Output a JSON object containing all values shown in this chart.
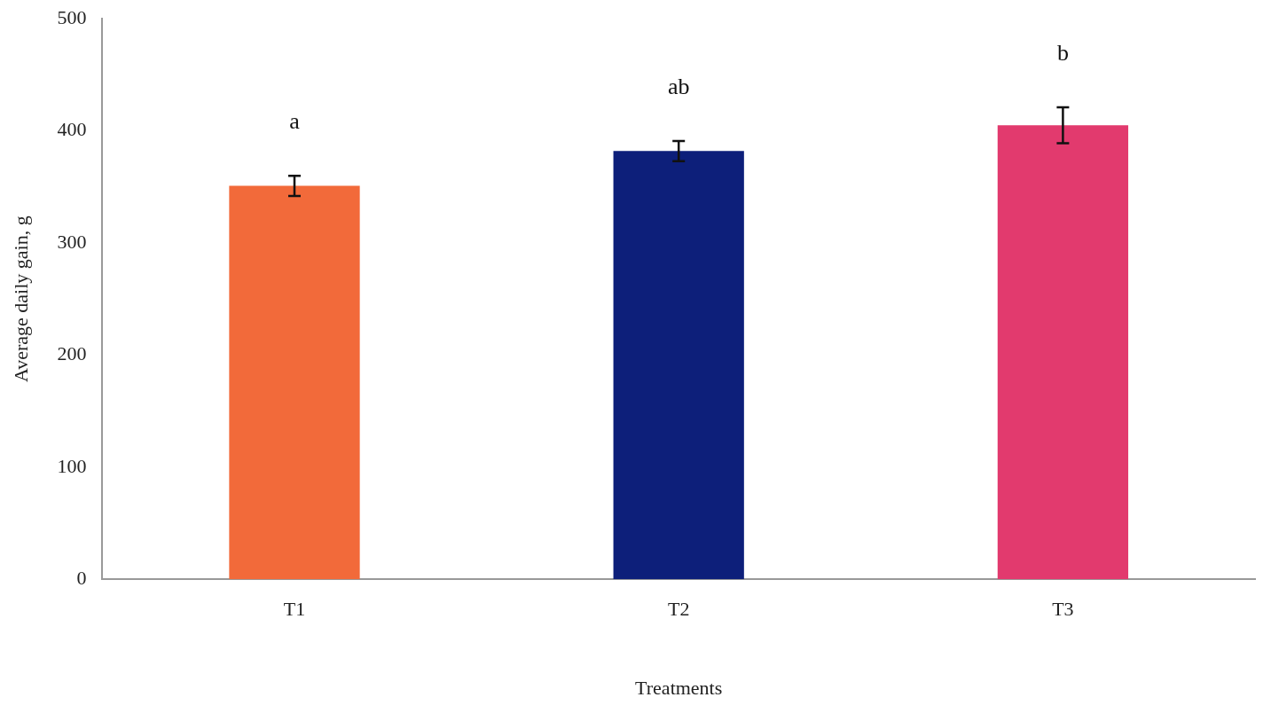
{
  "chart_data": {
    "type": "bar",
    "xlabel": "Treatments",
    "ylabel": "Average daily gain, g",
    "categories": [
      "T1",
      "T2",
      "T3"
    ],
    "values": [
      351,
      382,
      405
    ],
    "errors": [
      9,
      9,
      16
    ],
    "colors": [
      "#f26a3a",
      "#0d1f7a",
      "#e23a6e"
    ],
    "ylim": [
      0,
      500
    ],
    "yticks": [
      0,
      100,
      200,
      300,
      400,
      500
    ],
    "grid": false,
    "annotations": [
      "a",
      "ab",
      "b"
    ]
  }
}
